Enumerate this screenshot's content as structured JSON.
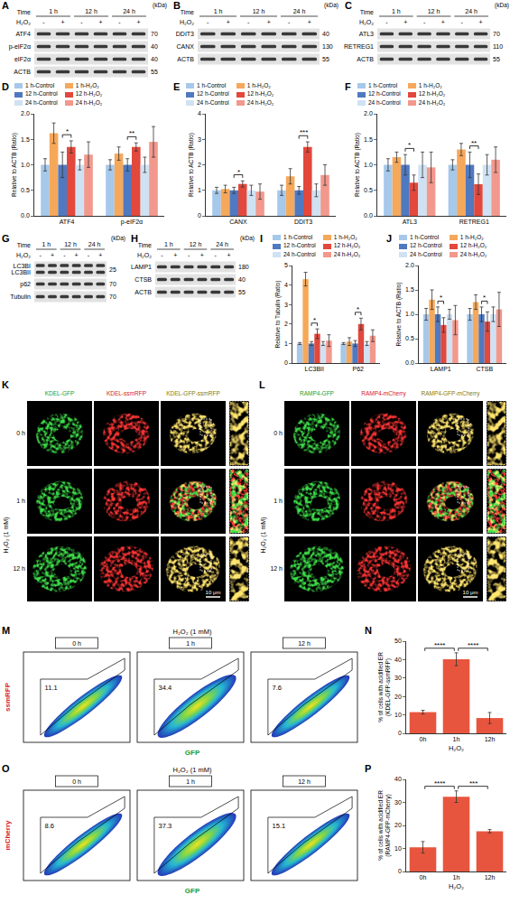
{
  "blots": [
    {
      "letter": "A",
      "time_label": "Time",
      "times": [
        "1 h",
        "12 h",
        "24 h"
      ],
      "treatment_label": "H₂O₂",
      "treatment": [
        "-",
        "+",
        "-",
        "+",
        "-",
        "+"
      ],
      "unit_label": "(kDa)",
      "rows": [
        {
          "protein": "ATF4",
          "kda": 70
        },
        {
          "protein": "p-eIF2α",
          "kda": 40
        },
        {
          "protein": "eIF2α",
          "kda": 40
        },
        {
          "protein": "ACTB",
          "kda": 55
        }
      ]
    },
    {
      "letter": "B",
      "time_label": "Time",
      "times": [
        "1 h",
        "12 h",
        "24 h"
      ],
      "treatment_label": "H₂O₂",
      "treatment": [
        "-",
        "+",
        "-",
        "+",
        "-",
        "+"
      ],
      "unit_label": "(kDa)",
      "rows": [
        {
          "protein": "DDIT3",
          "kda": 40
        },
        {
          "protein": "CANX",
          "kda": 130
        },
        {
          "protein": "ACTB",
          "kda": 55
        }
      ]
    },
    {
      "letter": "C",
      "time_label": "Time",
      "times": [
        "1 h",
        "12 h",
        "24 h"
      ],
      "treatment_label": "H₂O₂",
      "treatment": [
        "-",
        "+",
        "-",
        "+",
        "-",
        "+"
      ],
      "unit_label": "(kDa)",
      "rows": [
        {
          "protein": "ATL3",
          "kda": 70
        },
        {
          "protein": "RETREG1",
          "kda": 110
        },
        {
          "protein": "ACTB",
          "kda": 55
        }
      ]
    },
    {
      "letter": "G",
      "time_label": "Time",
      "times": [
        "1 h",
        "12 h",
        "24 h"
      ],
      "treatment_label": "H₂O₂",
      "treatment": [
        "-",
        "+",
        "-",
        "+",
        "-",
        "+"
      ],
      "unit_label": "(kDa)",
      "rows": [
        {
          "protein": [
            "LC3BI",
            "LC3BII"
          ],
          "kda": 25
        },
        {
          "protein": "p62",
          "kda": 70
        },
        {
          "protein": "Tubulin",
          "kda": 70
        }
      ]
    },
    {
      "letter": "H",
      "time_label": "Time",
      "times": [
        "1 h",
        "12 h",
        "24 h"
      ],
      "treatment_label": "H₂O₂",
      "treatment": [
        "-",
        "+",
        "-",
        "+",
        "-",
        "+"
      ],
      "unit_label": "(kDa)",
      "rows": [
        {
          "protein": "LAMP1",
          "kda": 180
        },
        {
          "protein": "CTSB",
          "kda": 40
        },
        {
          "protein": "ACTB",
          "kda": 55
        }
      ]
    }
  ],
  "chart_data": [
    {
      "letter": "D",
      "type": "bar",
      "y_label": "Relative to ACTB (Ratio)",
      "categories": [
        "ATF4",
        "p-eIF2α"
      ],
      "legend": "top",
      "grid": false,
      "ylim": [
        0,
        2
      ],
      "yticks": [
        {
          "value": 0,
          "label": "0.0"
        },
        0.5,
        {
          "value": 1,
          "label": "1.0"
        },
        1.5,
        {
          "value": 2,
          "label": "2.0"
        }
      ],
      "series": [
        {
          "name": "1 h-Control",
          "color": "#a6c8ea",
          "values": [
            1.0,
            1.0
          ],
          "error": [
            0.12,
            0.1
          ]
        },
        {
          "name": "1 h-H₂O₂",
          "color": "#f6a85a",
          "values": [
            1.62,
            1.22
          ],
          "error": [
            0.2,
            0.13
          ]
        },
        {
          "name": "12 h-Control",
          "color": "#4f79c0",
          "values": [
            1.0,
            1.0
          ],
          "error": [
            0.25,
            0.12
          ]
        },
        {
          "name": "12 h-H₂O₂",
          "color": "#e2483c",
          "values": [
            1.35,
            1.35
          ],
          "error": [
            0.12,
            0.08
          ]
        },
        {
          "name": "24 h-Control",
          "color": "#cfe2f3",
          "values": [
            1.0,
            1.0
          ],
          "error": [
            0.1,
            0.15
          ]
        },
        {
          "name": "24 h-H₂O₂",
          "color": "#f2988c",
          "values": [
            1.2,
            1.45
          ],
          "error": [
            0.25,
            0.3
          ]
        }
      ],
      "significance": [
        {
          "category": "ATF4",
          "pair": [
            "12 h-Control",
            "12 h-H₂O₂"
          ],
          "text": "*"
        },
        {
          "category": "p-eIF2α",
          "pair": [
            "12 h-Control",
            "12 h-H₂O₂"
          ],
          "text": "**"
        }
      ]
    },
    {
      "letter": "E",
      "type": "bar",
      "y_label": "Relative to ACTB (Ratio)",
      "categories": [
        "CANX",
        "DDIT3"
      ],
      "legend": "top",
      "grid": false,
      "ylim": [
        0,
        4
      ],
      "yticks": [
        0,
        1,
        2,
        3,
        4
      ],
      "series": [
        {
          "name": "1 h-Control",
          "color": "#a6c8ea",
          "values": [
            1.0,
            1.0
          ],
          "error": [
            0.12,
            0.2
          ]
        },
        {
          "name": "1 h-H₂O₂",
          "color": "#f6a85a",
          "values": [
            1.05,
            1.55
          ],
          "error": [
            0.15,
            0.3
          ]
        },
        {
          "name": "12 h-Control",
          "color": "#4f79c0",
          "values": [
            1.0,
            1.0
          ],
          "error": [
            0.12,
            0.15
          ]
        },
        {
          "name": "12 h-H₂O₂",
          "color": "#e2483c",
          "values": [
            1.25,
            2.7
          ],
          "error": [
            0.12,
            0.2
          ]
        },
        {
          "name": "24 h-Control",
          "color": "#cfe2f3",
          "values": [
            1.0,
            1.0
          ],
          "error": [
            0.2,
            0.25
          ]
        },
        {
          "name": "24 h-H₂O₂",
          "color": "#f2988c",
          "values": [
            0.95,
            1.6
          ],
          "error": [
            0.3,
            0.4
          ]
        }
      ],
      "significance": [
        {
          "category": "CANX",
          "pair": [
            "12 h-Control",
            "12 h-H₂O₂"
          ],
          "text": "*"
        },
        {
          "category": "DDIT3",
          "pair": [
            "12 h-Control",
            "12 h-H₂O₂"
          ],
          "text": "***"
        }
      ]
    },
    {
      "letter": "F",
      "type": "bar",
      "y_label": "Relative to ACTB (Ratio)",
      "categories": [
        "ATL3",
        "RETREG1"
      ],
      "legend": "top",
      "grid": false,
      "ylim": [
        0,
        2
      ],
      "yticks": [
        {
          "value": 0,
          "label": "0.0"
        },
        0.5,
        {
          "value": 1,
          "label": "1.0"
        },
        1.5,
        {
          "value": 2,
          "label": "2.0"
        }
      ],
      "series": [
        {
          "name": "1 h-Control",
          "color": "#a6c8ea",
          "values": [
            1.0,
            1.0
          ],
          "error": [
            0.12,
            0.1
          ]
        },
        {
          "name": "1 h-H₂O₂",
          "color": "#f6a85a",
          "values": [
            1.15,
            1.3
          ],
          "error": [
            0.1,
            0.12
          ]
        },
        {
          "name": "12 h-Control",
          "color": "#4f79c0",
          "values": [
            1.0,
            1.0
          ],
          "error": [
            0.2,
            0.25
          ]
        },
        {
          "name": "12 h-H₂O₂",
          "color": "#e2483c",
          "values": [
            0.65,
            0.62
          ],
          "error": [
            0.15,
            0.2
          ]
        },
        {
          "name": "24 h-Control",
          "color": "#cfe2f3",
          "values": [
            1.0,
            1.0
          ],
          "error": [
            0.25,
            0.2
          ]
        },
        {
          "name": "24 h-H₂O₂",
          "color": "#f2988c",
          "values": [
            0.95,
            1.1
          ],
          "error": [
            0.3,
            0.25
          ]
        }
      ],
      "significance": [
        {
          "category": "ATL3",
          "pair": [
            "12 h-Control",
            "12 h-H₂O₂"
          ],
          "text": "*"
        },
        {
          "category": "RETREG1",
          "pair": [
            "12 h-Control",
            "12 h-H₂O₂"
          ],
          "text": "**"
        }
      ]
    },
    {
      "letter": "I",
      "type": "bar",
      "y_label": "Relative to Tubulin (Ratio)",
      "categories": [
        "LC3BII",
        "P62"
      ],
      "legend": "top",
      "grid": false,
      "ylim": [
        0,
        5
      ],
      "yticks": [
        0,
        1,
        2,
        3,
        4,
        5
      ],
      "series": [
        {
          "name": "1 h-Control",
          "color": "#a6c8ea",
          "values": [
            1.0,
            1.0
          ],
          "error": [
            0.05,
            0.05
          ]
        },
        {
          "name": "1 h-H₂O₂",
          "color": "#f6a85a",
          "values": [
            4.3,
            1.1
          ],
          "error": [
            0.35,
            0.2
          ]
        },
        {
          "name": "12 h-Control",
          "color": "#4f79c0",
          "values": [
            1.0,
            1.0
          ],
          "error": [
            0.1,
            0.15
          ]
        },
        {
          "name": "12 h-H₂O₂",
          "color": "#e2483c",
          "values": [
            1.5,
            2.0
          ],
          "error": [
            0.25,
            0.3
          ]
        },
        {
          "name": "24 h-Control",
          "color": "#cfe2f3",
          "values": [
            1.0,
            1.0
          ],
          "error": [
            0.1,
            0.1
          ]
        },
        {
          "name": "24 h-H₂O₂",
          "color": "#f2988c",
          "values": [
            1.15,
            1.4
          ],
          "error": [
            0.3,
            0.3
          ]
        }
      ],
      "significance": [
        {
          "category": "LC3BII",
          "pair": [
            "12 h-Control",
            "12 h-H₂O₂"
          ],
          "text": "*"
        },
        {
          "category": "P62",
          "pair": [
            "12 h-Control",
            "12 h-H₂O₂"
          ],
          "text": "*"
        }
      ]
    },
    {
      "letter": "J",
      "type": "bar",
      "y_label": "Relative to ACTB (Ratio)",
      "categories": [
        "LAMP1",
        "CTSB"
      ],
      "legend": "top",
      "grid": false,
      "ylim": [
        0,
        2
      ],
      "yticks": [
        {
          "value": 0,
          "label": "0.0"
        },
        0.5,
        {
          "value": 1,
          "label": "1.0"
        },
        1.5,
        {
          "value": 2,
          "label": "2.0"
        }
      ],
      "series": [
        {
          "name": "1 h-Control",
          "color": "#a6c8ea",
          "values": [
            1.0,
            1.0
          ],
          "error": [
            0.12,
            0.12
          ]
        },
        {
          "name": "1 h-H₂O₂",
          "color": "#f6a85a",
          "values": [
            1.3,
            1.25
          ],
          "error": [
            0.2,
            0.15
          ]
        },
        {
          "name": "12 h-Control",
          "color": "#4f79c0",
          "values": [
            1.0,
            1.0
          ],
          "error": [
            0.15,
            0.15
          ]
        },
        {
          "name": "12 h-H₂O₂",
          "color": "#e2483c",
          "values": [
            0.78,
            0.85
          ],
          "error": [
            0.15,
            0.2
          ]
        },
        {
          "name": "24 h-Control",
          "color": "#cfe2f3",
          "values": [
            1.0,
            1.0
          ],
          "error": [
            0.1,
            0.15
          ]
        },
        {
          "name": "24 h-H₂O₂",
          "color": "#f2988c",
          "values": [
            0.88,
            1.1
          ],
          "error": [
            0.3,
            0.35
          ]
        }
      ],
      "significance": [
        {
          "category": "LAMP1",
          "pair": [
            "12 h-Control",
            "12 h-H₂O₂"
          ],
          "text": "*"
        },
        {
          "category": "CTSB",
          "pair": [
            "12 h-Control",
            "12 h-H₂O₂"
          ],
          "text": "*"
        }
      ]
    },
    {
      "letter": "N",
      "type": "bar",
      "y_label": "% of cells with acidified ER (KDEL-GFP-ssmRFP)",
      "x_label": "H₂O₂",
      "categories": [
        "0h",
        "1h",
        "12h"
      ],
      "grid": false,
      "values": [
        11.5,
        40.2,
        8.3
      ],
      "error": [
        1.0,
        3.5,
        3.0
      ],
      "color": "#e8553e",
      "ylim": [
        0,
        50
      ],
      "yticks": [
        0,
        10,
        20,
        30,
        40,
        50
      ],
      "significance": [
        {
          "pair": [
            "0h",
            "1h"
          ],
          "text": "****"
        },
        {
          "pair": [
            "1h",
            "12h"
          ],
          "text": "****"
        }
      ]
    },
    {
      "letter": "P",
      "type": "bar",
      "y_label": "% of cells with acidified ER (RAMP4-GFP-mCherry)",
      "x_label": "H₂O₂",
      "categories": [
        "0h",
        "1h",
        "12h"
      ],
      "grid": false,
      "values": [
        10.5,
        32.5,
        17.5
      ],
      "error": [
        2.5,
        2.5,
        0.7
      ],
      "color": "#e8553e",
      "ylim": [
        0,
        40
      ],
      "yticks": [
        0,
        10,
        20,
        30,
        40
      ],
      "significance": [
        {
          "pair": [
            "0h",
            "1h"
          ],
          "text": "****"
        },
        {
          "pair": [
            "1h",
            "12h"
          ],
          "text": "***"
        }
      ]
    }
  ],
  "microscopy": [
    {
      "letter": "K",
      "columns": [
        "KDEL-GFP",
        "KDEL-ssmRFP",
        "KDEL-GFP-ssmRFP"
      ],
      "rows": [
        "0 h",
        "1 h",
        "12 h"
      ],
      "condition": "H₂O₂ (1 mM)",
      "scale_bar": "10 μm"
    },
    {
      "letter": "L",
      "columns": [
        "RAMP4-GFP",
        "RAMP4-mCherry",
        "RAMP4-GFP-mCherry"
      ],
      "rows": [
        "0 h",
        "1 h",
        "12 h"
      ],
      "condition": "H₂O₂ (1 mM)",
      "scale_bar": "10 μm"
    }
  ],
  "flow": [
    {
      "letter": "M",
      "condition": "H₂O₂ (1 mM)",
      "x_label": "GFP",
      "y_label": "ssmRFP",
      "samples": [
        "0 h",
        "1 h",
        "12 h"
      ],
      "gate_percent": [
        11.1,
        34.4,
        7.6
      ]
    },
    {
      "letter": "O",
      "condition": "H₂O₂ (1 mM)",
      "x_label": "GFP",
      "y_label": "mCherry",
      "samples": [
        "0 h",
        "1 h",
        "12 h"
      ],
      "gate_percent": [
        8.6,
        37.3,
        15.1
      ]
    }
  ]
}
